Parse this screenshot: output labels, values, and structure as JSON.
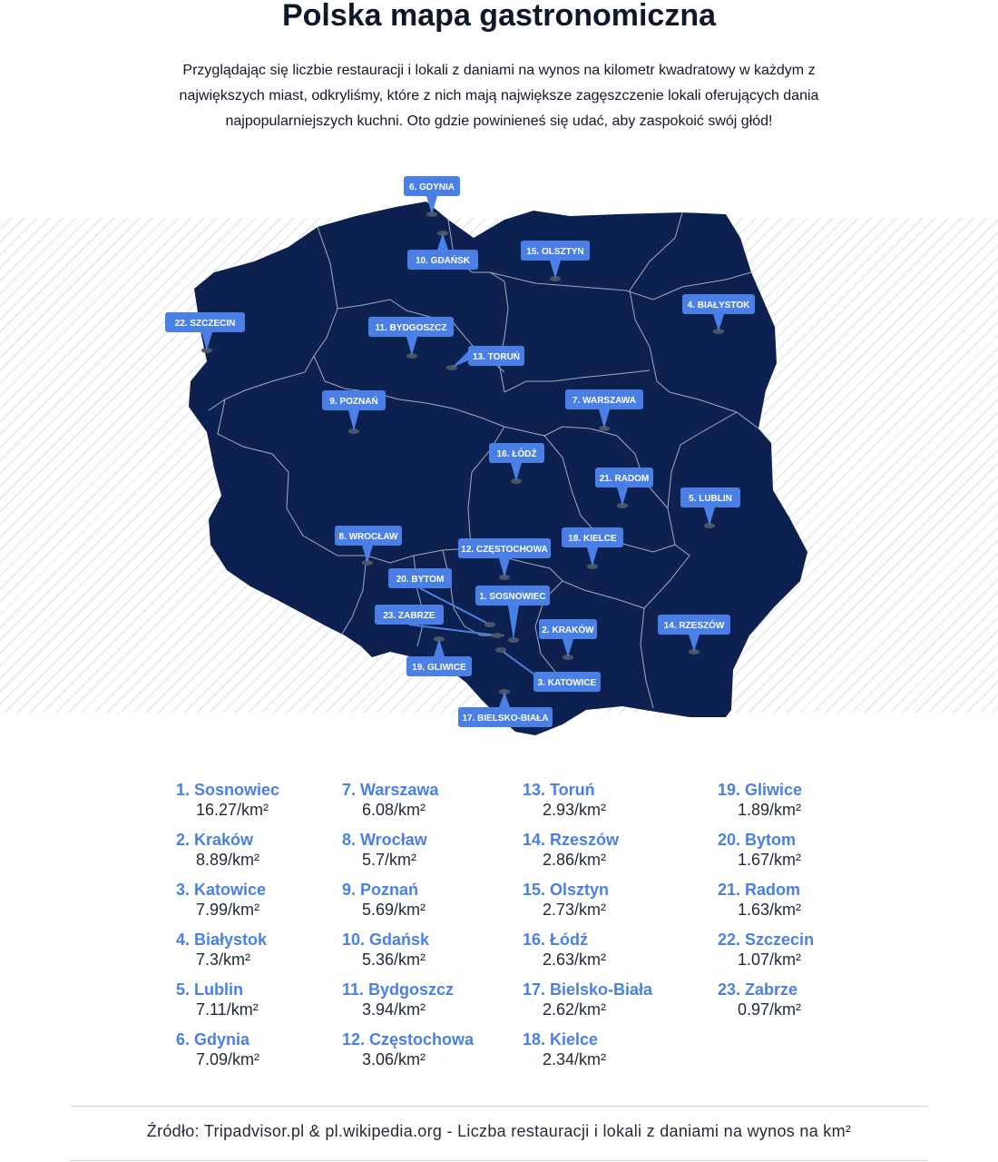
{
  "title": "Polska mapa gastronomiczna",
  "intro": "Przyglądając się liczbie restauracji i lokali z daniami na wynos na kilometr kwadratowy w każdym z największych miast, odkryliśmy, które z nich mają największe zagęszczenie lokali oferujących dania najpopularniejszych kuchni. Oto gdzie powinieneś się udać, aby zaspokoić swój głód!",
  "colors": {
    "map_fill": "#0d2150",
    "border": "#c7cedb",
    "accent": "#4a80e6",
    "pin": "#4b5563"
  },
  "markers": [
    {
      "id": "gdynia",
      "label": "6. GDYNIA"
    },
    {
      "id": "gdansk",
      "label": "10. GDAŃSK"
    },
    {
      "id": "olsztyn",
      "label": "15. OLSZTYN"
    },
    {
      "id": "bialystok",
      "label": "4. BIAŁYSTOK"
    },
    {
      "id": "szczecin",
      "label": "22. SZCZECIN"
    },
    {
      "id": "bydgoszcz",
      "label": "11. BYDGOSZCZ"
    },
    {
      "id": "torun",
      "label": "13. TORUŃ"
    },
    {
      "id": "poznan",
      "label": "9. POZNAŃ"
    },
    {
      "id": "warszawa",
      "label": "7. WARSZAWA"
    },
    {
      "id": "lodz",
      "label": "16. ŁÓDŹ"
    },
    {
      "id": "radom",
      "label": "21. RADOM"
    },
    {
      "id": "lublin",
      "label": "5. LUBLIN"
    },
    {
      "id": "wroclaw",
      "label": "8. WROCŁAW"
    },
    {
      "id": "czestochowa",
      "label": "12. CZĘSTOCHOWA"
    },
    {
      "id": "kielce",
      "label": "18. KIELCE"
    },
    {
      "id": "bytom",
      "label": "20. BYTOM"
    },
    {
      "id": "sosnowiec",
      "label": "1. SOSNOWIEC"
    },
    {
      "id": "zabrze",
      "label": "23. ZABRZE"
    },
    {
      "id": "krakow",
      "label": "2. KRAKÓW"
    },
    {
      "id": "rzeszow",
      "label": "14. RZESZÓW"
    },
    {
      "id": "gliwice",
      "label": "19. GLIWICE"
    },
    {
      "id": "katowice",
      "label": "3. KATOWICE"
    },
    {
      "id": "bielsko",
      "label": "17. BIELSKO-BIAŁA"
    }
  ],
  "rankings": [
    [
      {
        "name": "1. Sosnowiec",
        "value": "16.27/km²"
      },
      {
        "name": "2. Kraków",
        "value": "8.89/km²"
      },
      {
        "name": "3. Katowice",
        "value": "7.99/km²"
      },
      {
        "name": "4. Białystok",
        "value": "7.3/km²"
      },
      {
        "name": "5. Lublin",
        "value": "7.11/km²"
      },
      {
        "name": "6. Gdynia",
        "value": "7.09/km²"
      }
    ],
    [
      {
        "name": "7. Warszawa",
        "value": "6.08/km²"
      },
      {
        "name": "8. Wrocław",
        "value": "5.7/km²"
      },
      {
        "name": "9. Poznań",
        "value": "5.69/km²"
      },
      {
        "name": "10. Gdańsk",
        "value": "5.36/km²"
      },
      {
        "name": "11. Bydgoszcz",
        "value": "3.94/km²"
      },
      {
        "name": "12. Częstochowa",
        "value": "3.06/km²"
      }
    ],
    [
      {
        "name": "13. Toruń",
        "value": "2.93/km²"
      },
      {
        "name": "14. Rzeszów",
        "value": "2.86/km²"
      },
      {
        "name": "15. Olsztyn",
        "value": "2.73/km²"
      },
      {
        "name": "16. Łódź",
        "value": "2.63/km²"
      },
      {
        "name": "17. Bielsko-Biała",
        "value": "2.62/km²"
      },
      {
        "name": "18. Kielce",
        "value": "2.34/km²"
      }
    ],
    [
      {
        "name": "19. Gliwice",
        "value": "1.89/km²"
      },
      {
        "name": "20. Bytom",
        "value": "1.67/km²"
      },
      {
        "name": "21. Radom",
        "value": "1.63/km²"
      },
      {
        "name": "22. Szczecin",
        "value": "1.07/km²"
      },
      {
        "name": "23. Zabrze",
        "value": "0.97/km²"
      }
    ]
  ],
  "source": "Źródło: Tripadvisor.pl & pl.wikipedia.org - Liczba restauracji i lokali z daniami na wynos na km²"
}
